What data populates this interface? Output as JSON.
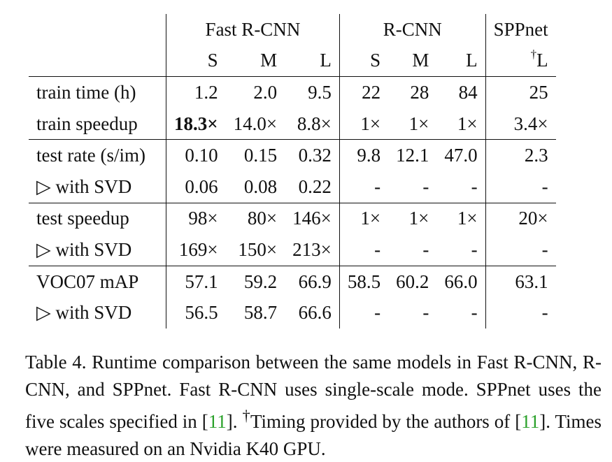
{
  "table": {
    "groups": [
      "Fast R-CNN",
      "R-CNN",
      "SPPnet"
    ],
    "subheaders": [
      "S",
      "M",
      "L",
      "S",
      "M",
      "L",
      "L"
    ],
    "sppnet_dagger": "†",
    "rows": [
      {
        "label": "train time (h)",
        "values": [
          "1.2",
          "2.0",
          "9.5",
          "22",
          "28",
          "84",
          "25"
        ]
      },
      {
        "label": "train speedup",
        "values": [
          "18.3×",
          "14.0×",
          "8.8×",
          "1×",
          "1×",
          "1×",
          "3.4×"
        ]
      },
      {
        "label": "test rate (s/im)",
        "values": [
          "0.10",
          "0.15",
          "0.32",
          "9.8",
          "12.1",
          "47.0",
          "2.3"
        ]
      },
      {
        "label": "▷ with SVD",
        "values": [
          "0.06",
          "0.08",
          "0.22",
          "-",
          "-",
          "-",
          "-"
        ]
      },
      {
        "label": "test speedup",
        "values": [
          "98×",
          "80×",
          "146×",
          "1×",
          "1×",
          "1×",
          "20×"
        ]
      },
      {
        "label": "▷ with SVD",
        "values": [
          "169×",
          "150×",
          "213×",
          "-",
          "-",
          "-",
          "-"
        ]
      },
      {
        "label": "VOC07 mAP",
        "values": [
          "57.1",
          "59.2",
          "66.9",
          "58.5",
          "60.2",
          "66.0",
          "63.1"
        ]
      },
      {
        "label": "▷ with SVD",
        "values": [
          "56.5",
          "58.7",
          "66.6",
          "-",
          "-",
          "-",
          "-"
        ]
      }
    ]
  },
  "caption": {
    "part1": "Table 4. Runtime comparison between the same models in Fast R-CNN, R-CNN, and SPPnet. Fast R-CNN uses single-scale mode. SPPnet uses the five scales specified in [",
    "cite1": "11",
    "part2": "]. ",
    "dagger": "†",
    "part3": "Timing provided by the authors of [",
    "cite2": "11",
    "part4": "]. Times were measured on an Nvidia K40 GPU."
  }
}
